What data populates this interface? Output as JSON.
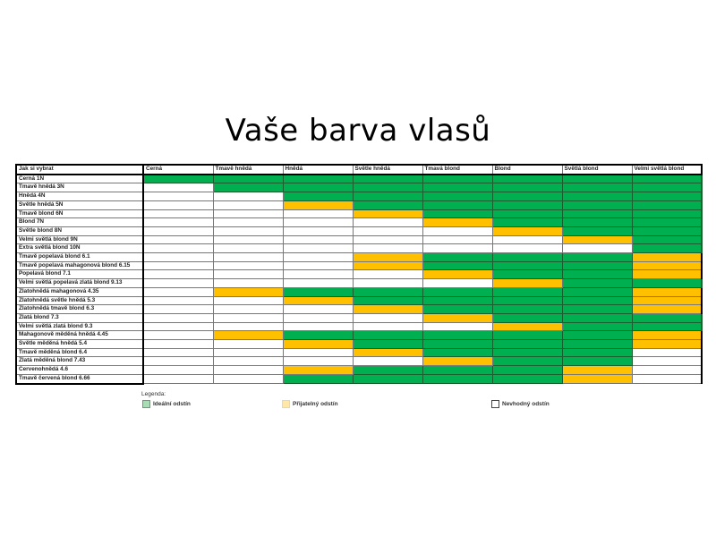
{
  "title": "Vaše barva vlasů",
  "table": {
    "corner_label": "Jak si vybrat",
    "columns": [
      "Černá",
      "Tmavě hnědá",
      "Hnědá",
      "Světle hnědá",
      "Tmavá blond",
      "Blond",
      "Světlá blond",
      "Velmi světlá blond"
    ],
    "rows": [
      {
        "label": "Černá 1N",
        "cells": "GGGGGGGG"
      },
      {
        "label": "Tmavě hnědá 3N",
        "cells": "WGGGGGGG"
      },
      {
        "label": "Hnědá 4N",
        "cells": "WWGGGGGG"
      },
      {
        "label": "Světle hnědá 5N",
        "cells": "WWYGGGGG"
      },
      {
        "label": "Tmavě blond 6N",
        "cells": "WWWYGGGG"
      },
      {
        "label": "Blond 7N",
        "cells": "WWWWYGGG"
      },
      {
        "label": "Světle blond 8N",
        "cells": "WWWWWYGG"
      },
      {
        "label": "Velmi světlá blond 9N",
        "cells": "WWWWWWYG"
      },
      {
        "label": "Extra světlá blond 10N",
        "cells": "WWWWWWWG"
      },
      {
        "label": "Tmavě popelavá blond 6.1",
        "cells": "WWWYGGGY"
      },
      {
        "label": "Tmavě popelavá mahagonová blond 6.15",
        "cells": "WWWYGGGY"
      },
      {
        "label": "Popelavá blond 7.1",
        "cells": "WWWWYGGY"
      },
      {
        "label": "Velmi světlá popelavá zlatá blond 9.13",
        "cells": "WWWWWYGG"
      },
      {
        "label": "Zlatohnědá mahagonová 4.35",
        "cells": "WYGGGGGY"
      },
      {
        "label": "Zlatohnědá světle hnědá 5.3",
        "cells": "WWYGGGGY"
      },
      {
        "label": "Zlatohnědá tmavě blond 6.3",
        "cells": "WWWYGGGY"
      },
      {
        "label": "Zlatá blond 7.3",
        "cells": "WWWWYGGG"
      },
      {
        "label": "Velmi světlá zlatá blond 9.3",
        "cells": "WWWWWYGG"
      },
      {
        "label": "Mahagonově měděná hnědá 4.45",
        "cells": "WYGGGGGY"
      },
      {
        "label": "Světle měděná hnědá 5.4",
        "cells": "WWYGGGGY"
      },
      {
        "label": "Tmavě měděná blond 6.4",
        "cells": "WWWYGGGW"
      },
      {
        "label": "Zlatá měděná blond 7.43",
        "cells": "WWWWYGGW"
      },
      {
        "label": "Červenohnědá 4.6",
        "cells": "WWYGGGYW"
      },
      {
        "label": "Tmavě červená blond 6.66",
        "cells": "WWGGGGYW"
      }
    ]
  },
  "legend": {
    "title": "Legenda:",
    "ideal": {
      "label": "Ideální odstín",
      "code": "G",
      "color": "#00b050",
      "swatch": "#a9dcb5"
    },
    "acceptable": {
      "label": "Přijatelný odstín",
      "code": "Y",
      "color": "#ffc000",
      "swatch": "#ffe8a8"
    },
    "unsuitable": {
      "label": "Nevhodný odstín",
      "code": "W",
      "color": "#ffffff",
      "swatch": "#ffffff"
    }
  }
}
